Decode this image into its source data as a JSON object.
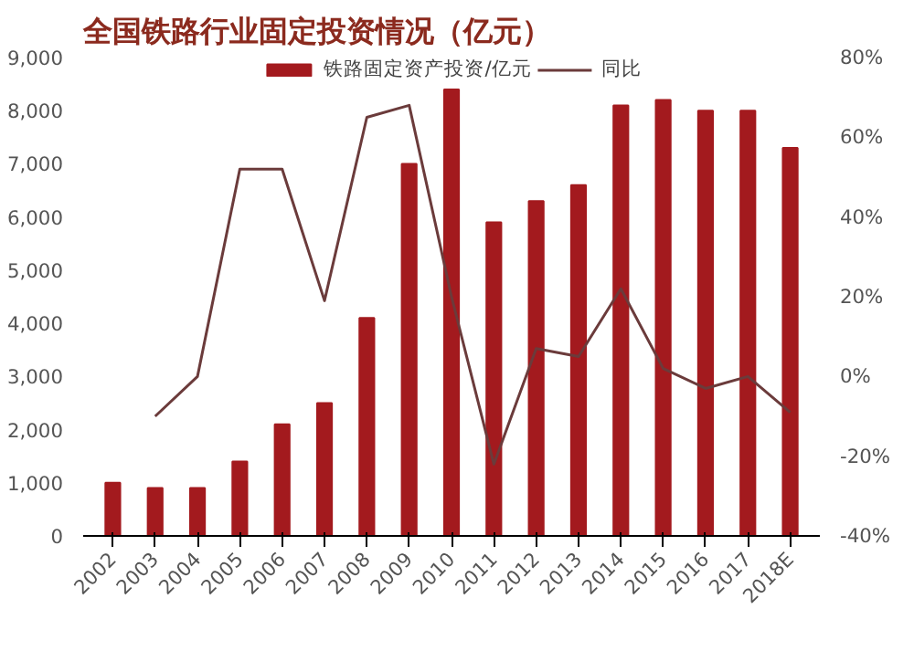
{
  "chart_data": {
    "type": "bar",
    "title": "全国铁路行业固定投资情况（亿元）",
    "categories": [
      "2002",
      "2003",
      "2004",
      "2005",
      "2006",
      "2007",
      "2008",
      "2009",
      "2010",
      "2011",
      "2012",
      "2013",
      "2014",
      "2015",
      "2016",
      "2017",
      "2018E"
    ],
    "series": [
      {
        "name": "铁路固定资产投资/亿元",
        "color": "#a31a1e",
        "values": [
          1000,
          900,
          900,
          1400,
          2100,
          2500,
          4100,
          7000,
          8400,
          5900,
          6300,
          6600,
          8100,
          8200,
          8000,
          8000,
          7300
        ]
      },
      {
        "name": "同比",
        "type": "line",
        "axis": "y2",
        "color": "#6b3b3b",
        "values": [
          null,
          -10,
          0,
          52,
          52,
          19,
          65,
          68,
          20,
          -22,
          7,
          5,
          22,
          2,
          -3,
          0,
          -9
        ]
      }
    ],
    "ylim": [
      0,
      9000
    ],
    "yticks": [
      0,
      {
        "value": 1000,
        "label": "1,000"
      },
      {
        "value": 2000,
        "label": "2,000"
      },
      {
        "value": 3000,
        "label": "3,000"
      },
      {
        "value": 4000,
        "label": "4,000"
      },
      {
        "value": 5000,
        "label": "5,000"
      },
      {
        "value": 6000,
        "label": "6,000"
      },
      {
        "value": 7000,
        "label": "7,000"
      },
      {
        "value": 8000,
        "label": "8,000"
      },
      {
        "value": 9000,
        "label": "9,000"
      }
    ],
    "y2lim": [
      -40,
      80
    ],
    "y2ticks": [
      {
        "value": -40,
        "label": "-40%"
      },
      {
        "value": -20,
        "label": "-20%"
      },
      {
        "value": 0,
        "label": "0%"
      },
      {
        "value": 20,
        "label": "20%"
      },
      {
        "value": 40,
        "label": "40%"
      },
      {
        "value": 60,
        "label": "60%"
      },
      {
        "value": 80,
        "label": "80%"
      }
    ],
    "legend": "top",
    "grid": false
  }
}
